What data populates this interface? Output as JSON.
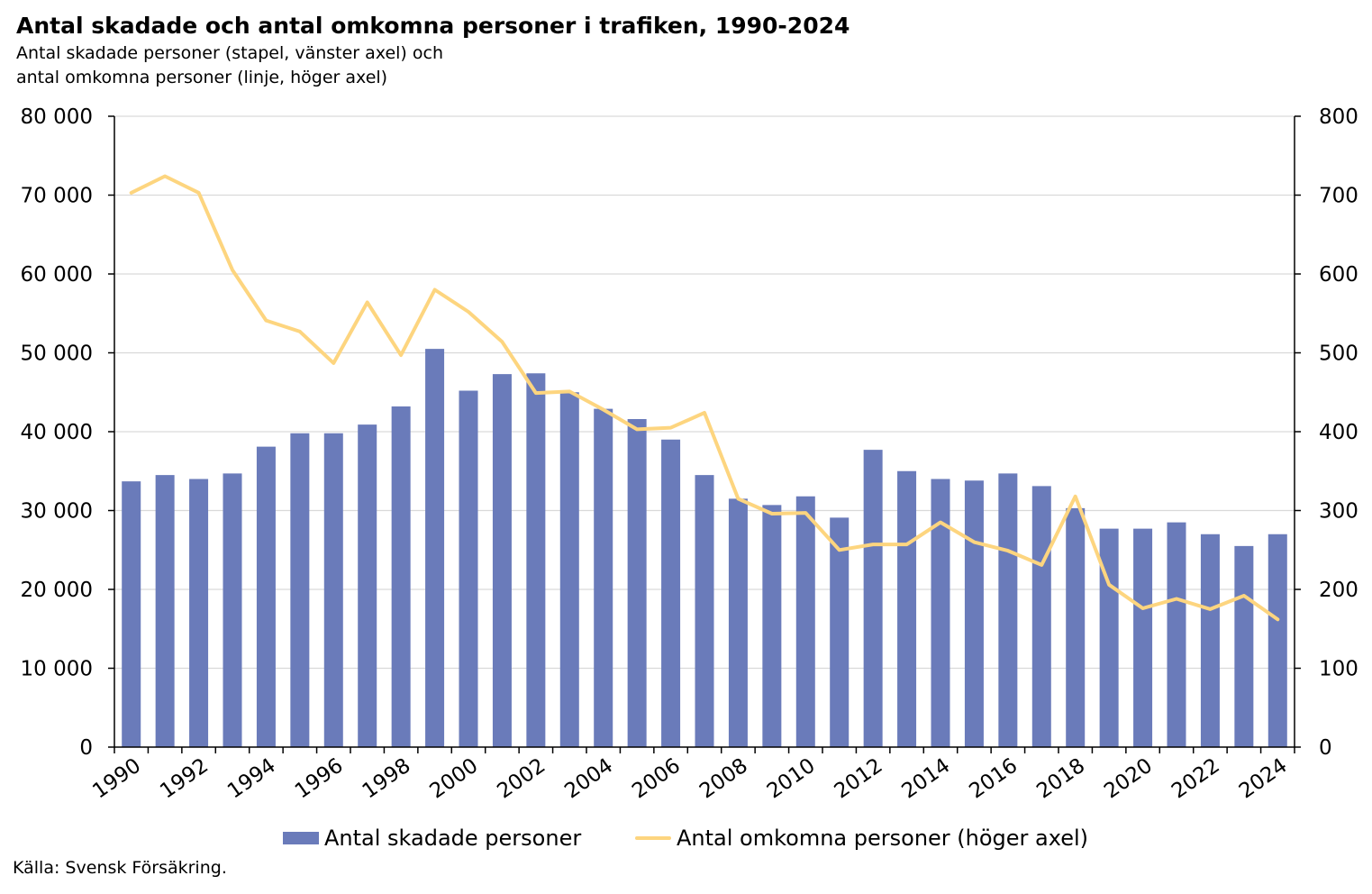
{
  "title": "Antal skadade och antal omkomna personer i trafiken, 1990-2024",
  "subtitle_line1": "Antal skadade personer (stapel, vänster axel) och",
  "subtitle_line2": "antal omkomna personer (linje, höger axel)",
  "source": "Källa: Svensk Försäkring.",
  "colors": {
    "bars": "#6a7bba",
    "line": "#fdd57f",
    "grid": "#d9d9d9",
    "axis": "#000000"
  },
  "chart_data": {
    "type": "bar+line",
    "x": [
      1990,
      1991,
      1992,
      1993,
      1994,
      1995,
      1996,
      1997,
      1998,
      1999,
      2000,
      2001,
      2002,
      2003,
      2004,
      2005,
      2006,
      2007,
      2008,
      2009,
      2010,
      2011,
      2012,
      2013,
      2014,
      2015,
      2016,
      2017,
      2018,
      2019,
      2020,
      2021,
      2022,
      2023,
      2024
    ],
    "x_tick_labels": [
      "1990",
      "1992",
      "1994",
      "1996",
      "1998",
      "2000",
      "2002",
      "2004",
      "2006",
      "2008",
      "2010",
      "2012",
      "2014",
      "2016",
      "2018",
      "2020",
      "2022",
      "2024"
    ],
    "series": [
      {
        "name": "Antal skadade personer",
        "type": "bar",
        "axis": "left",
        "values": [
          33700,
          34500,
          34000,
          34700,
          38100,
          39800,
          39800,
          40900,
          43200,
          50500,
          45200,
          47300,
          47400,
          45000,
          42900,
          41600,
          39000,
          34500,
          31500,
          30700,
          31800,
          29100,
          37700,
          35000,
          34000,
          33800,
          34700,
          33100,
          30300,
          27700,
          27700,
          28500,
          27000,
          25500,
          27000
        ]
      },
      {
        "name": "Antal omkomna personer (höger axel)",
        "type": "line",
        "axis": "right",
        "values": [
          703,
          724,
          703,
          605,
          541,
          527,
          487,
          564,
          497,
          580,
          552,
          514,
          449,
          451,
          428,
          403,
          405,
          424,
          315,
          296,
          297,
          250,
          257,
          257,
          285,
          260,
          249,
          231,
          318,
          206,
          176,
          188,
          175,
          192,
          162
        ]
      }
    ],
    "y_left": {
      "min": 0,
      "max": 80000,
      "ticks": [
        0,
        10000,
        20000,
        30000,
        40000,
        50000,
        60000,
        70000,
        80000
      ],
      "tick_labels": [
        "0",
        "10 000",
        "20 000",
        "30 000",
        "40 000",
        "50 000",
        "60 000",
        "70 000",
        "80 000"
      ]
    },
    "y_right": {
      "min": 0,
      "max": 800,
      "ticks": [
        0,
        100,
        200,
        300,
        400,
        500,
        600,
        700,
        800
      ],
      "tick_labels": [
        "0",
        "100",
        "200",
        "300",
        "400",
        "500",
        "600",
        "700",
        "800"
      ]
    },
    "grid": true,
    "legend": "bottom"
  }
}
